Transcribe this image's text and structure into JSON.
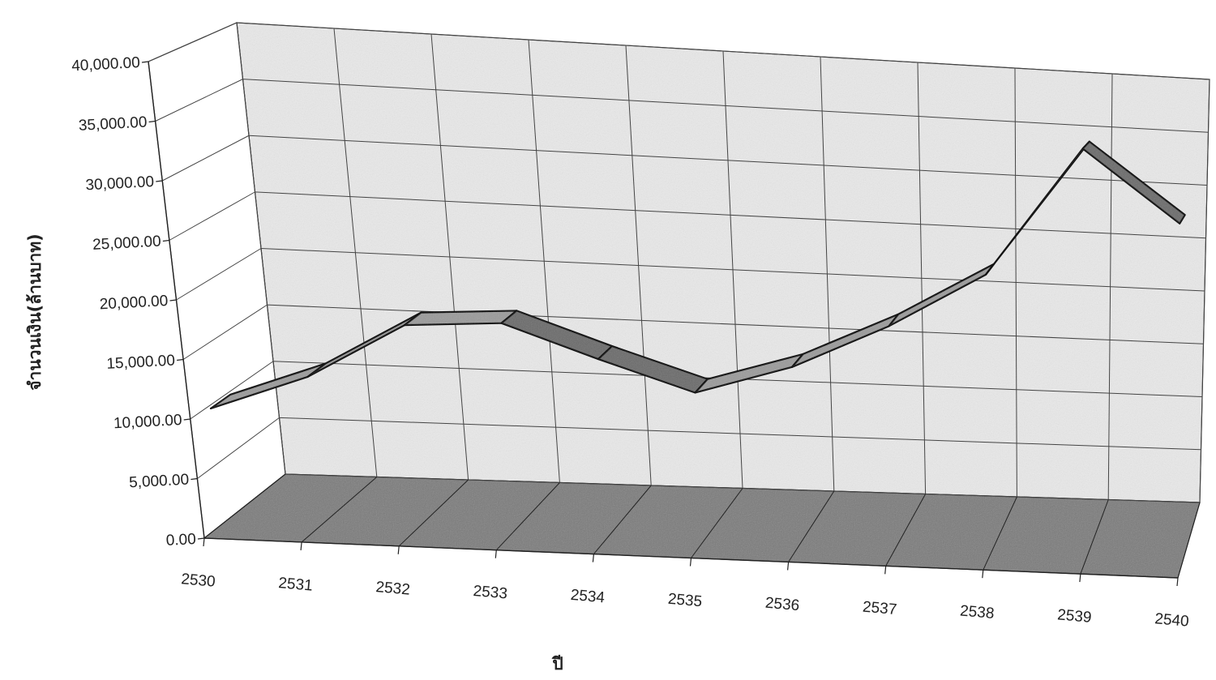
{
  "chart_data": {
    "type": "line",
    "title": "",
    "xlabel": "ปี",
    "ylabel": "จำนวนเงิน(ล้านบาท)",
    "categories": [
      "2530",
      "2531",
      "2532",
      "2533",
      "2534",
      "2535",
      "2536",
      "2537",
      "2538",
      "2539",
      "2540"
    ],
    "series": [
      {
        "values": [
          10500,
          13500,
          18200,
          18700,
          16000,
          13500,
          16000,
          19800,
          24500,
          35500,
          29500
        ]
      }
    ],
    "ylim": [
      0,
      40000
    ],
    "yticks": [
      "0.00",
      "5,000.00",
      "10,000.00",
      "15,000.00",
      "20,000.00",
      "25,000.00",
      "30,000.00",
      "35,000.00",
      "40,000.00"
    ],
    "grid": true,
    "legend": "none",
    "style": "3d-ribbon"
  }
}
